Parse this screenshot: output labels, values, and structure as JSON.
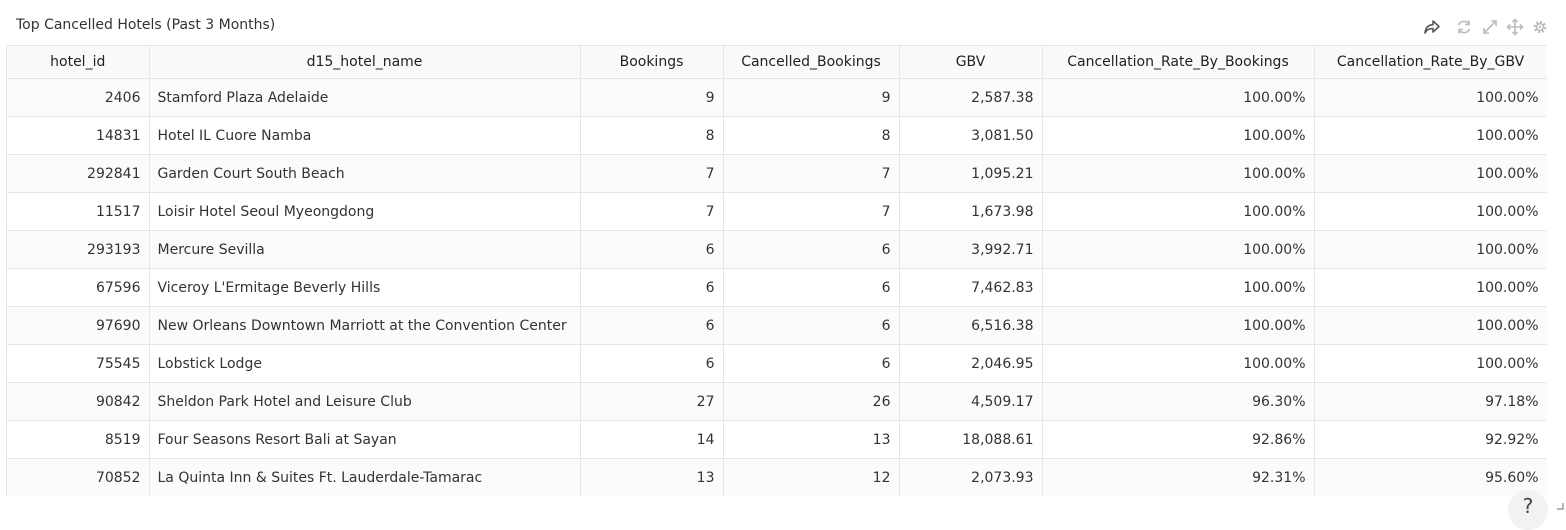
{
  "panel": {
    "title": "Top Cancelled Hotels (Past 3 Months)"
  },
  "toolbar": {
    "icons": [
      "share-icon",
      "refresh-icon",
      "expand-icon",
      "move-icon",
      "gear-icon"
    ]
  },
  "table": {
    "columns": [
      "hotel_id",
      "d15_hotel_name",
      "Bookings",
      "Cancelled_Bookings",
      "GBV",
      "Cancellation_Rate_By_Bookings",
      "Cancellation_Rate_By_GBV"
    ],
    "rows": [
      [
        "2406",
        "Stamford Plaza Adelaide",
        "9",
        "9",
        "2,587.38",
        "100.00%",
        "100.00%"
      ],
      [
        "14831",
        "Hotel IL Cuore Namba",
        "8",
        "8",
        "3,081.50",
        "100.00%",
        "100.00%"
      ],
      [
        "292841",
        "Garden Court South Beach",
        "7",
        "7",
        "1,095.21",
        "100.00%",
        "100.00%"
      ],
      [
        "11517",
        "Loisir Hotel Seoul Myeongdong",
        "7",
        "7",
        "1,673.98",
        "100.00%",
        "100.00%"
      ],
      [
        "293193",
        "Mercure Sevilla",
        "6",
        "6",
        "3,992.71",
        "100.00%",
        "100.00%"
      ],
      [
        "67596",
        "Viceroy L'Ermitage Beverly Hills",
        "6",
        "6",
        "7,462.83",
        "100.00%",
        "100.00%"
      ],
      [
        "97690",
        "New Orleans Downtown Marriott at the Convention Center",
        "6",
        "6",
        "6,516.38",
        "100.00%",
        "100.00%"
      ],
      [
        "75545",
        "Lobstick Lodge",
        "6",
        "6",
        "2,046.95",
        "100.00%",
        "100.00%"
      ],
      [
        "90842",
        "Sheldon Park Hotel and Leisure Club",
        "27",
        "26",
        "4,509.17",
        "96.30%",
        "97.18%"
      ],
      [
        "8519",
        "Four Seasons Resort Bali at Sayan",
        "14",
        "13",
        "18,088.61",
        "92.86%",
        "92.92%"
      ],
      [
        "70852",
        "La Quinta Inn & Suites Ft. Lauderdale-Tamarac",
        "13",
        "12",
        "2,073.93",
        "92.31%",
        "95.60%"
      ]
    ]
  },
  "help": {
    "label": "?"
  }
}
